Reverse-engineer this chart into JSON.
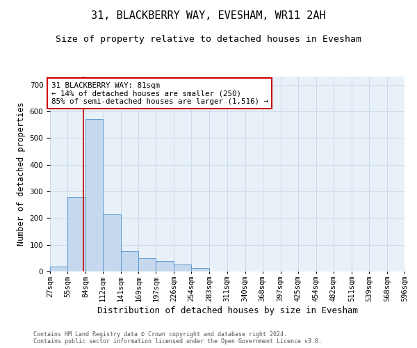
{
  "title": "31, BLACKBERRY WAY, EVESHAM, WR11 2AH",
  "subtitle": "Size of property relative to detached houses in Evesham",
  "xlabel": "Distribution of detached houses by size in Evesham",
  "ylabel": "Number of detached properties",
  "footer_line1": "Contains HM Land Registry data © Crown copyright and database right 2024.",
  "footer_line2": "Contains public sector information licensed under the Open Government Licence v3.0.",
  "bar_color": "#c5d8ed",
  "bar_edge_color": "#5b9bd5",
  "grid_color": "#c8d8e8",
  "annotation_text": "31 BLACKBERRY WAY: 81sqm\n← 14% of detached houses are smaller (250)\n85% of semi-detached houses are larger (1,516) →",
  "annotation_box_color": "#ffffff",
  "annotation_box_edge_color": "#cc0000",
  "redline_color": "#cc0000",
  "property_size": 81,
  "bin_edges": [
    27,
    55,
    84,
    112,
    141,
    169,
    197,
    226,
    254,
    283,
    311,
    340,
    368,
    397,
    425,
    454,
    482,
    511,
    539,
    568,
    596
  ],
  "bar_heights": [
    18,
    280,
    570,
    215,
    75,
    50,
    40,
    25,
    12,
    0,
    0,
    0,
    0,
    0,
    0,
    0,
    0,
    0,
    0,
    0
  ],
  "ylim": [
    0,
    730
  ],
  "yticks": [
    0,
    100,
    200,
    300,
    400,
    500,
    600,
    700
  ],
  "title_fontsize": 11,
  "subtitle_fontsize": 9.5,
  "tick_fontsize": 7.5,
  "ylabel_fontsize": 8.5,
  "xlabel_fontsize": 9,
  "footer_fontsize": 6,
  "bg_color": "#e8f0f8"
}
